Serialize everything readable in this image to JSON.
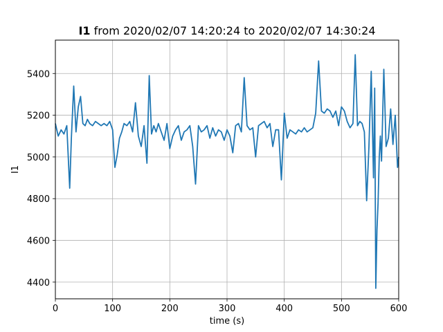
{
  "chart_data": {
    "type": "line",
    "title_bold": "I1",
    "title_rest": " from 2020/02/07 14:20:24 to 2020/02/07 14:30:24",
    "xlabel": "time (s)",
    "ylabel": "I1",
    "xlim": [
      0,
      600
    ],
    "ylim": [
      4320,
      5560
    ],
    "xticks": [
      0,
      100,
      200,
      300,
      400,
      500,
      600
    ],
    "yticks": [
      4400,
      4600,
      4800,
      5000,
      5200,
      5400
    ],
    "grid": true,
    "color": "#1f77b4",
    "series": [
      {
        "x": [
          0,
          5,
          10,
          15,
          20,
          25,
          28,
          32,
          36,
          40,
          44,
          48,
          52,
          56,
          60,
          65,
          70,
          75,
          80,
          85,
          90,
          95,
          100,
          104,
          108,
          112,
          116,
          120,
          125,
          130,
          135,
          140,
          145,
          150,
          155,
          160,
          164,
          168,
          172,
          176,
          180,
          185,
          190,
          195,
          200,
          205,
          210,
          215,
          220,
          225,
          230,
          235,
          240,
          245,
          250,
          255,
          260,
          265,
          270,
          275,
          280,
          285,
          290,
          295,
          300,
          305,
          310,
          315,
          320,
          325,
          330,
          335,
          340,
          345,
          350,
          355,
          360,
          365,
          370,
          375,
          380,
          385,
          390,
          395,
          400,
          405,
          410,
          415,
          420,
          425,
          430,
          435,
          440,
          445,
          450,
          455,
          460,
          465,
          470,
          475,
          480,
          485,
          490,
          495,
          500,
          505,
          510,
          515,
          520,
          524,
          528,
          532,
          536,
          540,
          544,
          548,
          552,
          556,
          558,
          560,
          562,
          564,
          566,
          568,
          570,
          574,
          578,
          582,
          586,
          590,
          594,
          598,
          600
        ],
        "y": [
          5160,
          5100,
          5130,
          5110,
          5150,
          4850,
          5090,
          5340,
          5120,
          5240,
          5290,
          5160,
          5150,
          5180,
          5160,
          5150,
          5170,
          5160,
          5150,
          5160,
          5150,
          5170,
          5130,
          4950,
          5010,
          5090,
          5120,
          5160,
          5150,
          5170,
          5120,
          5260,
          5100,
          5050,
          5150,
          4970,
          5390,
          5110,
          5150,
          5120,
          5160,
          5120,
          5080,
          5160,
          5040,
          5100,
          5130,
          5150,
          5080,
          5120,
          5130,
          5150,
          5050,
          4870,
          5150,
          5120,
          5130,
          5150,
          5090,
          5140,
          5100,
          5130,
          5120,
          5080,
          5130,
          5100,
          5020,
          5150,
          5160,
          5120,
          5380,
          5150,
          5130,
          5140,
          5000,
          5150,
          5160,
          5170,
          5140,
          5160,
          5050,
          5130,
          5130,
          4890,
          5210,
          5090,
          5130,
          5120,
          5110,
          5130,
          5120,
          5140,
          5120,
          5130,
          5140,
          5210,
          5460,
          5220,
          5210,
          5230,
          5220,
          5190,
          5220,
          5150,
          5240,
          5220,
          5170,
          5140,
          5160,
          5490,
          5150,
          5170,
          5160,
          5120,
          4790,
          5050,
          5410,
          4900,
          5330,
          4370,
          4650,
          4780,
          5000,
          5100,
          4980,
          5420,
          5050,
          5090,
          5230,
          5060,
          5200,
          4950,
          5000
        ]
      }
    ]
  }
}
